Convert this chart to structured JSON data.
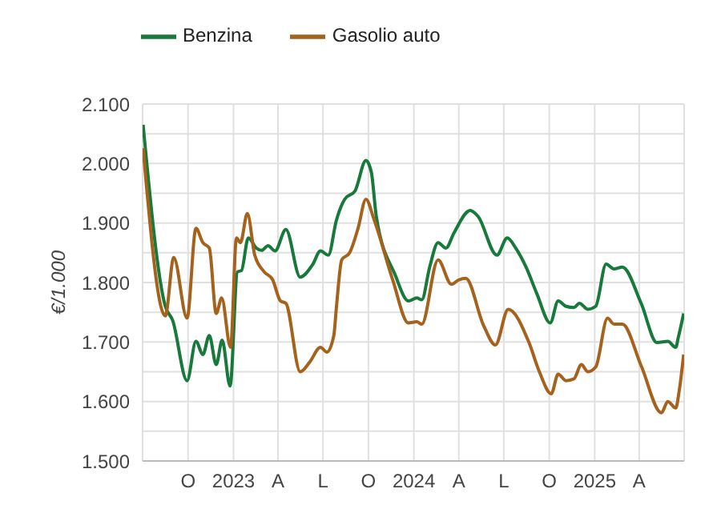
{
  "chart_data": {
    "type": "line",
    "ylabel": "€/1.000",
    "legend": "top left",
    "grid": true,
    "marker": "none",
    "line_style": "solid",
    "xlim": [
      "2022-07-01",
      "2025-07-01"
    ],
    "xticks": [
      {
        "value": "2022-10-01",
        "label": "O"
      },
      {
        "value": "2023-01-01",
        "label": "2023"
      },
      {
        "value": "2023-04-01",
        "label": "A"
      },
      {
        "value": "2023-07-01",
        "label": "L"
      },
      {
        "value": "2023-10-01",
        "label": "O"
      },
      {
        "value": "2024-01-01",
        "label": "2024"
      },
      {
        "value": "2024-04-01",
        "label": "A"
      },
      {
        "value": "2024-07-01",
        "label": "L"
      },
      {
        "value": "2024-10-01",
        "label": "O"
      },
      {
        "value": "2025-01-01",
        "label": "2025"
      },
      {
        "value": "2025-04-01",
        "label": "A"
      }
    ],
    "ylim": [
      1500,
      2100
    ],
    "yticks": [
      {
        "value": 1500,
        "label": "1.500"
      },
      {
        "value": 1550,
        "label": null
      },
      {
        "value": 1600,
        "label": "1.600"
      },
      {
        "value": 1650,
        "label": null
      },
      {
        "value": 1700,
        "label": "1.700"
      },
      {
        "value": 1750,
        "label": null
      },
      {
        "value": 1800,
        "label": "1.800"
      },
      {
        "value": 1850,
        "label": null
      },
      {
        "value": 1900,
        "label": "1.900"
      },
      {
        "value": 1950,
        "label": null
      },
      {
        "value": 2000,
        "label": "2.000"
      },
      {
        "value": 2050,
        "label": null
      },
      {
        "value": 2100,
        "label": "2.100"
      }
    ],
    "series": [
      {
        "name": "Benzina",
        "color": "#17793a",
        "x": [
          "2022-07-02",
          "2022-08-16",
          "2022-08-31",
          "2022-09-29",
          "2022-10-17",
          "2022-10-31",
          "2022-11-13",
          "2022-11-27",
          "2022-12-09",
          "2022-12-25",
          "2023-01-09",
          "2023-01-17",
          "2023-01-31",
          "2023-02-16",
          "2023-02-27",
          "2023-03-12",
          "2023-03-26",
          "2023-04-17",
          "2023-05-16",
          "2023-06-10",
          "2023-06-26",
          "2023-07-12",
          "2023-07-28",
          "2023-08-14",
          "2023-09-04",
          "2023-09-26",
          "2023-10-07",
          "2023-10-17",
          "2023-11-24",
          "2023-12-21",
          "2024-01-07",
          "2024-01-17",
          "2024-02-02",
          "2024-02-19",
          "2024-03-06",
          "2024-03-22",
          "2024-04-24",
          "2024-05-10",
          "2024-06-17",
          "2024-07-08",
          "2024-07-25",
          "2024-08-15",
          "2024-09-06",
          "2024-10-03",
          "2024-10-19",
          "2024-11-04",
          "2024-11-20",
          "2024-12-01",
          "2024-12-18",
          "2025-01-03",
          "2025-01-24",
          "2025-02-09",
          "2025-02-26",
          "2025-04-05",
          "2025-05-07",
          "2025-05-29",
          "2025-06-14",
          "2025-06-19",
          "2025-06-30"
        ],
        "values": [
          2065,
          1760,
          1736,
          1635,
          1701,
          1679,
          1711,
          1662,
          1703,
          1626,
          1818,
          1820,
          1875,
          1858,
          1854,
          1862,
          1853,
          1889,
          1809,
          1830,
          1853,
          1846,
          1904,
          1940,
          1954,
          2005,
          1985,
          1911,
          1813,
          1769,
          1774,
          1771,
          1826,
          1867,
          1858,
          1883,
          1921,
          1911,
          1846,
          1875,
          1858,
          1826,
          1781,
          1732,
          1769,
          1760,
          1758,
          1765,
          1755,
          1760,
          1831,
          1823,
          1826,
          1765,
          1699,
          1701,
          1691,
          1707,
          1748
        ]
      },
      {
        "name": "Gasolio auto",
        "color": "#a5621c",
        "x": [
          "2022-07-02",
          "2022-08-16",
          "2022-09-02",
          "2022-09-29",
          "2022-10-17",
          "2022-10-31",
          "2022-11-13",
          "2022-11-27",
          "2022-12-08",
          "2022-12-26",
          "2023-01-07",
          "2023-01-15",
          "2023-01-29",
          "2023-02-13",
          "2023-03-04",
          "2023-03-21",
          "2023-04-06",
          "2023-04-17",
          "2023-05-16",
          "2023-06-04",
          "2023-06-26",
          "2023-07-09",
          "2023-07-23",
          "2023-07-28",
          "2023-08-08",
          "2023-08-24",
          "2023-09-10",
          "2023-09-26",
          "2023-10-12",
          "2023-11-19",
          "2023-12-21",
          "2024-01-07",
          "2024-01-17",
          "2024-02-19",
          "2024-03-17",
          "2024-03-31",
          "2024-04-15",
          "2024-05-21",
          "2024-06-14",
          "2024-07-10",
          "2024-08-21",
          "2024-09-11",
          "2024-10-05",
          "2024-10-19",
          "2024-11-04",
          "2024-11-20",
          "2024-12-05",
          "2024-12-18",
          "2025-01-03",
          "2025-01-27",
          "2025-02-09",
          "2025-02-26",
          "2025-04-05",
          "2025-05-16",
          "2025-05-29",
          "2025-06-14",
          "2025-06-21",
          "2025-06-30"
        ],
        "values": [
          2026,
          1744,
          1842,
          1740,
          1891,
          1867,
          1858,
          1748,
          1774,
          1691,
          1875,
          1867,
          1916,
          1846,
          1818,
          1805,
          1769,
          1765,
          1650,
          1666,
          1691,
          1683,
          1711,
          1756,
          1838,
          1850,
          1891,
          1940,
          1907,
          1805,
          1732,
          1734,
          1730,
          1838,
          1797,
          1804,
          1807,
          1728,
          1695,
          1755,
          1699,
          1650,
          1613,
          1646,
          1635,
          1638,
          1662,
          1650,
          1658,
          1740,
          1730,
          1730,
          1660,
          1581,
          1600,
          1589,
          1618,
          1679
        ]
      }
    ]
  }
}
